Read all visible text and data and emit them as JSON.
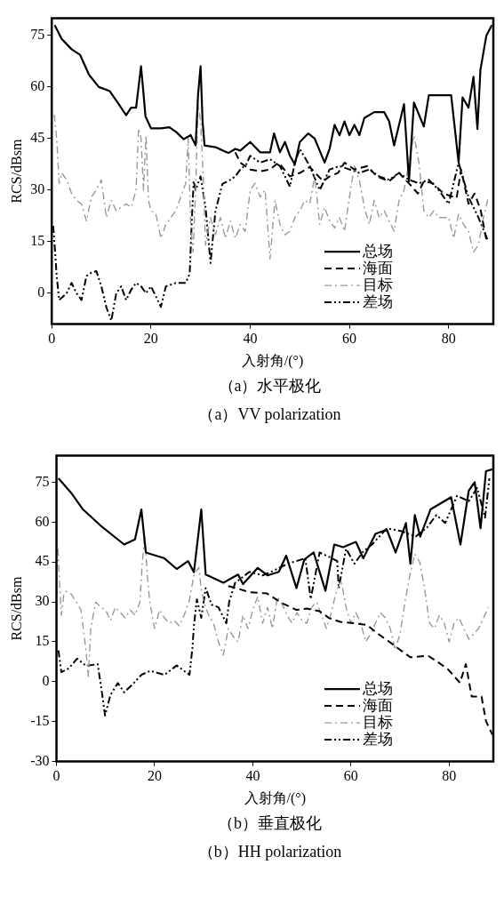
{
  "chart_data": [
    {
      "type": "line",
      "xlabel": "入射角/(°)",
      "ylabel": "RCS/dBsm",
      "xlim": [
        0,
        89
      ],
      "ylim": [
        -9,
        80
      ],
      "xticks": [
        0,
        20,
        40,
        60,
        80
      ],
      "yticks": [
        0,
        15,
        30,
        45,
        60,
        75
      ],
      "legend": "bottom right",
      "marker": "none",
      "annotations": [
        "（a）水平极化",
        "（a）VV polarization"
      ],
      "series": [
        {
          "name": "总场",
          "color": "#000000",
          "line_style": "solid",
          "x": [
            0.6,
            2,
            4,
            5.7,
            7.5,
            9.5,
            11.7,
            13.5,
            15,
            16,
            17,
            17.5,
            18,
            18.5,
            18.9,
            20,
            22,
            23.7,
            25,
            26.6,
            28,
            29,
            29.5,
            30,
            30.4,
            30.8,
            33,
            35.6,
            37,
            38,
            40,
            42,
            44,
            44.8,
            46,
            47,
            48,
            49,
            50,
            51.7,
            53,
            55,
            56,
            57,
            58,
            59,
            60,
            61,
            62,
            63,
            65,
            67,
            68,
            69,
            70,
            71,
            72,
            73,
            74,
            75,
            76,
            78,
            80.5,
            82,
            82.8,
            84,
            85,
            85.8,
            86.4,
            87.6,
            88.7
          ],
          "values": [
            78,
            74,
            71,
            69.4,
            63.6,
            60,
            58.8,
            55,
            51.8,
            54,
            54,
            60,
            66,
            58,
            51.4,
            48,
            48,
            48.3,
            47,
            44.8,
            46,
            43,
            58,
            66,
            50,
            43,
            42.5,
            40.8,
            42,
            41.5,
            44,
            41,
            41,
            46.5,
            41,
            44,
            40,
            37.5,
            44,
            46.5,
            45,
            38,
            42,
            49,
            46,
            50,
            46,
            49,
            46,
            51,
            52.7,
            52.7,
            50,
            43,
            49,
            55,
            32.6,
            55.5,
            52,
            48.5,
            57.6,
            57.6,
            57.6,
            38,
            57,
            54,
            63,
            47.8,
            65,
            75,
            78
          ]
        },
        {
          "name": "海面",
          "color": "#000000",
          "line_style": "dashed",
          "x": [
            37,
            38,
            40,
            42,
            44,
            45.7,
            48,
            50,
            52,
            54.7,
            56,
            57.7,
            59,
            61,
            63.6,
            65.5,
            68,
            70,
            72.6,
            73.8,
            75,
            76.8,
            79,
            81.6,
            82.5,
            84,
            85.2,
            86.4,
            87.6
          ],
          "values": [
            41,
            38,
            36,
            35.5,
            36,
            38,
            34,
            35,
            36.7,
            32.6,
            34,
            35,
            38,
            36,
            37,
            34,
            32.6,
            35,
            31,
            29,
            32.6,
            32,
            29,
            27.7,
            36,
            26,
            29,
            24.5,
            15.5
          ]
        },
        {
          "name": "目标",
          "color": "#999999",
          "line_style": "dashdot",
          "x": [
            0.5,
            1,
            1.5,
            2,
            3,
            4,
            5,
            6,
            7,
            8,
            9,
            10,
            11,
            12,
            13,
            15,
            16,
            17,
            17.5,
            18,
            18.5,
            19,
            19.5,
            20,
            21,
            22,
            23,
            25,
            27,
            27.5,
            28,
            28.5,
            29,
            29.5,
            30,
            30.5,
            31,
            32,
            33,
            34,
            35,
            36,
            37,
            38,
            39,
            40,
            41,
            42,
            43,
            44,
            45,
            46,
            47,
            48,
            49,
            50,
            51,
            52,
            53,
            54,
            55,
            56,
            57,
            58,
            59,
            60,
            61,
            62,
            63,
            64,
            65,
            66,
            67,
            68,
            69,
            70,
            71,
            72,
            73,
            74,
            75,
            76,
            77,
            78,
            80,
            81,
            82,
            83,
            84,
            85,
            86,
            87,
            88
          ],
          "values": [
            52,
            45,
            32,
            35,
            33,
            29,
            27,
            26,
            21,
            28,
            30,
            33,
            22,
            27,
            24,
            26,
            25,
            30,
            48,
            45,
            30,
            46,
            27,
            24,
            23,
            16,
            20,
            24,
            32,
            45,
            20,
            12,
            30,
            55,
            50,
            35,
            14,
            22,
            17,
            22,
            16,
            21,
            16,
            20,
            18,
            30,
            32,
            28,
            30,
            10,
            27,
            20,
            17,
            18,
            22,
            24,
            27,
            26,
            34,
            20,
            25,
            21,
            19,
            22,
            18,
            28,
            37,
            33,
            25,
            20,
            27,
            22,
            24,
            21,
            18,
            27,
            30,
            38,
            46,
            38,
            24,
            22,
            24,
            22,
            22,
            16,
            23,
            20,
            18,
            12,
            14,
            22,
            28
          ]
        },
        {
          "name": "差场",
          "color": "#000000",
          "line_style": "dashdotdot",
          "x": [
            0.3,
            0.6,
            1,
            1.5,
            3,
            4,
            5,
            6,
            7,
            8,
            9,
            10,
            11,
            12,
            13,
            14,
            15,
            16,
            17,
            18,
            19,
            20,
            21,
            22,
            23,
            25,
            27,
            27.8,
            28.2,
            28.6,
            29,
            30,
            31,
            32,
            33,
            34.4,
            36,
            37,
            38,
            39.2,
            40,
            42,
            44,
            46,
            48,
            49,
            50,
            52,
            54,
            56,
            58,
            60,
            62,
            64,
            66,
            68,
            70,
            72,
            74,
            76,
            78,
            80,
            82,
            84,
            86,
            88
          ],
          "values": [
            19.6,
            13.7,
            5,
            -2,
            0,
            3,
            0,
            -2,
            5,
            6,
            6.4,
            2,
            -4,
            -8,
            0,
            2,
            -2,
            1,
            3,
            2,
            0,
            2,
            -1,
            -4,
            2,
            3,
            3,
            5.6,
            20,
            32.6,
            30,
            34,
            25,
            8.8,
            24,
            31.8,
            33,
            34,
            36,
            37.5,
            40,
            38,
            39,
            37,
            31,
            38,
            42,
            37,
            30,
            36,
            37,
            36,
            35,
            36,
            34,
            33,
            35,
            33,
            32,
            33,
            30,
            26,
            38,
            28,
            22,
            15
          ]
        }
      ]
    },
    {
      "type": "line",
      "xlabel": "入射角/(°)",
      "ylabel": "RCS/dBsm",
      "xlim": [
        0,
        89
      ],
      "ylim": [
        -30,
        85
      ],
      "xticks": [
        0,
        20,
        40,
        60,
        80
      ],
      "yticks": [
        -30,
        -15,
        0,
        15,
        30,
        45,
        60,
        75
      ],
      "legend": "bottom right",
      "marker": "none",
      "annotations": [
        "（b）垂直极化",
        "（b）HH polarization"
      ],
      "series": [
        {
          "name": "总场",
          "color": "#000000",
          "line_style": "solid",
          "x": [
            0.4,
            3,
            5.4,
            9,
            13.8,
            16,
            17.3,
            18.2,
            22,
            24.5,
            26.8,
            28,
            29.5,
            30.4,
            34,
            37,
            38,
            41,
            43,
            45.3,
            46.8,
            48.9,
            50.5,
            52.4,
            54.8,
            56.6,
            58.4,
            61,
            62.5,
            65,
            67.3,
            69.1,
            71.2,
            72.1,
            73,
            74.1,
            76.2,
            80.4,
            82.3,
            84,
            85.2,
            86.4,
            87.5,
            89
          ],
          "values": [
            76.5,
            71,
            64.8,
            58.7,
            51.6,
            53.5,
            64.8,
            48.6,
            46.4,
            42.4,
            45.4,
            41.2,
            64.8,
            40.3,
            37.2,
            40.3,
            36.7,
            42.8,
            40,
            41.3,
            47.4,
            35.2,
            46,
            48.6,
            34.2,
            51.6,
            50.6,
            52.6,
            46.4,
            55.6,
            57.2,
            48.6,
            59.7,
            44.4,
            62.7,
            54.6,
            64.8,
            69.4,
            51.6,
            71.9,
            75,
            57.7,
            79.2,
            80
          ]
        },
        {
          "name": "海面",
          "color": "#000000",
          "line_style": "dashed",
          "x": [
            35,
            37,
            39.3,
            42.9,
            45.9,
            48.9,
            51,
            53.6,
            55.5,
            57.8,
            60.5,
            63.2,
            65.5,
            67.9,
            70,
            72.1,
            75.7,
            78,
            79.8,
            82.2,
            83.4,
            84.6,
            86.6,
            87.5,
            88.8
          ],
          "values": [
            36,
            35,
            33.7,
            33.2,
            29.6,
            27,
            27.5,
            26.5,
            24,
            22.5,
            22,
            21.4,
            18,
            14.9,
            12,
            9.2,
            9.8,
            7,
            4.6,
            -0.4,
            6.6,
            -5.6,
            -5.6,
            -14.8,
            -19.9
          ]
        },
        {
          "name": "目标",
          "color": "#999999",
          "line_style": "dashdot",
          "x": [
            0.3,
            0.6,
            1,
            1.5,
            2,
            3,
            4,
            5,
            6,
            6.5,
            7,
            8,
            9,
            10,
            11,
            12,
            13,
            14,
            15,
            16,
            17,
            17.5,
            18,
            18.5,
            19,
            20,
            21,
            22,
            23,
            24,
            25,
            26,
            27,
            28,
            29,
            29.5,
            30,
            31,
            32,
            33,
            34,
            35,
            36,
            37,
            38,
            39,
            40,
            41,
            42,
            43,
            44,
            45,
            46,
            47,
            48,
            49,
            50,
            51,
            52,
            53,
            54,
            55,
            56,
            57,
            58,
            59,
            60,
            61,
            62,
            63,
            64,
            65,
            66,
            67,
            68,
            69,
            70,
            71,
            72,
            73,
            74,
            75,
            76,
            77,
            78,
            79,
            80,
            81,
            82,
            83,
            84,
            85,
            86,
            87,
            88
          ],
          "values": [
            50,
            38,
            25,
            33,
            34,
            33,
            30,
            27,
            12,
            2,
            20,
            30,
            28,
            27,
            23,
            28,
            26,
            24,
            27,
            25,
            30,
            45,
            55,
            40,
            30,
            20,
            27,
            24,
            22,
            23,
            21,
            25,
            30,
            40,
            43,
            35,
            30,
            25,
            22,
            15,
            10,
            20,
            17,
            15,
            25,
            20,
            27,
            32,
            22,
            28,
            20,
            32,
            29,
            25,
            22,
            26,
            23,
            22,
            28,
            30,
            25,
            20,
            26,
            34,
            38,
            28,
            22,
            26,
            22,
            15,
            18,
            22,
            26,
            24,
            20,
            12,
            18,
            30,
            40,
            48,
            45,
            35,
            22,
            20,
            25,
            22,
            15,
            22,
            24,
            20,
            16,
            18,
            20,
            24,
            28
          ]
        },
        {
          "name": "差场",
          "color": "#000000",
          "line_style": "dashdotdot",
          "x": [
            0.4,
            1,
            2.5,
            4.2,
            6,
            8.4,
            9.3,
            9.9,
            11,
            12.5,
            13.8,
            15.5,
            17.3,
            19.1,
            22,
            24.5,
            27.1,
            27.7,
            28,
            28.6,
            29.5,
            30.4,
            31.6,
            33,
            34.6,
            35.2,
            36.4,
            39.3,
            42,
            44.5,
            47.1,
            50.7,
            51.8,
            53.6,
            55.5,
            57.2,
            57.5,
            59,
            60.7,
            62.5,
            64.3,
            67.3,
            70.3,
            73.2,
            75.5,
            77.4,
            79.2,
            81.6,
            84,
            85.7,
            87.3,
            88.2
          ],
          "values": [
            11.8,
            3.6,
            5,
            8.7,
            6,
            6.6,
            -4.6,
            -12.7,
            -5,
            -0.5,
            -4,
            -1,
            2.6,
            4.1,
            2.6,
            6.1,
            2.6,
            12.8,
            21,
            31,
            24,
            35.2,
            29,
            28,
            22,
            30.2,
            37.2,
            41.3,
            40,
            42,
            44.4,
            46.4,
            31.1,
            48.6,
            47,
            45.4,
            35.2,
            50,
            44.4,
            49,
            51.6,
            57.7,
            56.6,
            54.6,
            58,
            62.7,
            59.7,
            69.9,
            67.9,
            72.9,
            61.7,
            76.5
          ]
        }
      ]
    }
  ]
}
